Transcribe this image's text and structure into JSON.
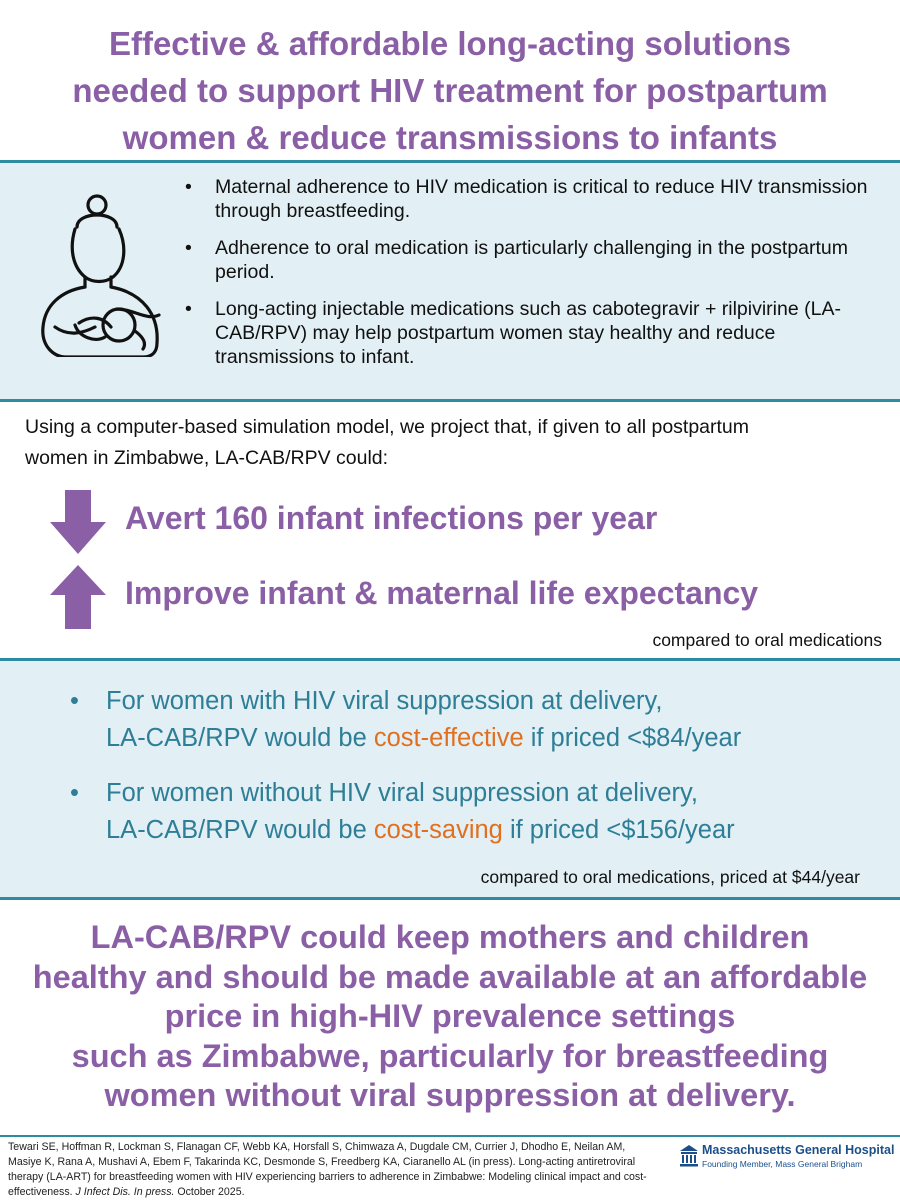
{
  "title": {
    "lines": [
      "Effective & affordable long-acting solutions",
      "needed to support HIV treatment for postpartum",
      "women & reduce transmissions to infants"
    ]
  },
  "colors": {
    "purple": "#8a5fa6",
    "teal": "#2d8ba2",
    "teal_text": "#2d7e96",
    "band_bg": "#e2eff4",
    "orange": "#e07020"
  },
  "icons": {
    "mother": "breastfeeding-mother-icon",
    "down_arrow": "down-arrow-icon",
    "up_arrow": "up-arrow-icon",
    "hospital": "hospital-building-icon"
  },
  "background_bullets": [
    {
      "bullet": "•",
      "text": "Maternal adherence to HIV medication is critical to reduce HIV transmission through breastfeeding."
    },
    {
      "bullet": "•",
      "text": "Adherence to oral medication is particularly challenging in the postpartum period."
    },
    {
      "bullet": "•",
      "text": "Long-acting injectable medications such as cabotegravir + rilpivirine (LA-CAB/RPV) may help postpartum women stay healthy and reduce transmissions to infant."
    }
  ],
  "intro": {
    "line1": "Using a computer-based simulation model, we project that, if given to all postpartum",
    "line2": "women in Zimbabwe, LA-CAB/RPV could:"
  },
  "stats": {
    "avert": "Avert 160 infant infections per year",
    "improve": "Improve infant & maternal life expectancy",
    "note": "compared to oral medications"
  },
  "cost_bullets": {
    "bullet": "•",
    "item1": {
      "line1": "For women with HIV viral suppression at delivery,",
      "pre": "LA-CAB/RPV would be ",
      "highlight": "cost-effective",
      "post": " if priced <$84/year"
    },
    "item2": {
      "line1": "For women without HIV viral suppression at delivery,",
      "pre": "LA-CAB/RPV would be ",
      "highlight": "cost-saving",
      "post": " if priced <$156/year"
    },
    "note": "compared to oral medications, priced at $44/year"
  },
  "conclusion": {
    "lines": [
      "LA-CAB/RPV could keep mothers and children",
      "healthy and should be made available at an affordable",
      "price in high-HIV prevalence settings",
      "such as Zimbabwe, particularly for breastfeeding",
      "women without viral suppression at delivery."
    ]
  },
  "footer": {
    "citation_main": "Tewari SE, Hoffman R, Lockman S, Flanagan CF, Webb KA, Horsfall S, Chimwaza A, Dugdale CM, Currier J, Dhodho E, Neilan AM, Masiye K, Rana A, Mushavi A, Ebem F, Takarinda KC, Desmonde S, Freedberg KA, Ciaranello AL (in press). Long-acting antiretroviral therapy (LA-ART) for breastfeeding women with HIV experiencing barriers to adherence in Zimbabwe: Modeling clinical impact and cost-effectiveness. ",
    "citation_journal": "J Infect Dis. In press.",
    "citation_date": " October 2025.",
    "org_name": "Massachusetts General Hospital",
    "org_sub": "Founding Member, Mass General Brigham"
  }
}
